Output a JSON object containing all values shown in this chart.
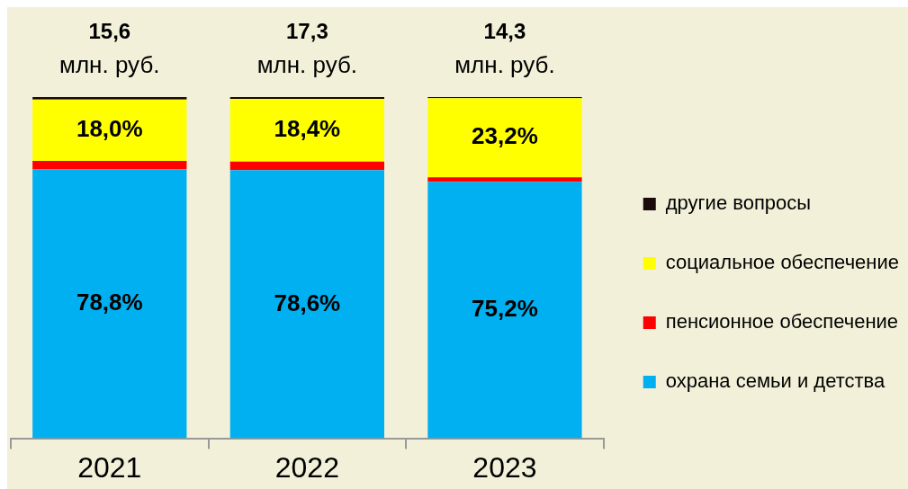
{
  "chart_data": {
    "type": "bar",
    "stacked": true,
    "tick_labels": "x",
    "categories": [
      "2021",
      "2022",
      "2023"
    ],
    "series": [
      {
        "name": "охрана семьи и детства",
        "color": "#00b0f0",
        "values": [
          78.8,
          78.6,
          75.2
        ],
        "value_labels": [
          "78,8%",
          "78,6%",
          "75,2%"
        ]
      },
      {
        "name": "пенсионное обеспечение",
        "color": "#ff0000",
        "values": [
          2.5,
          2.5,
          1.3
        ]
      },
      {
        "name": "социальное обеспечение",
        "color": "#ffff00",
        "values": [
          18.0,
          18.4,
          23.2
        ],
        "value_labels": [
          "18,0%",
          "18,4%",
          "23,2%"
        ]
      },
      {
        "name": "другие вопросы",
        "color": "#1a0a0a",
        "values": [
          0.7,
          0.5,
          0.3
        ]
      }
    ],
    "annotations": [
      "15,6 млн. руб.",
      "17,3 млн. руб.",
      "14,3 млн. руб."
    ],
    "legend": "right",
    "grid": false
  }
}
